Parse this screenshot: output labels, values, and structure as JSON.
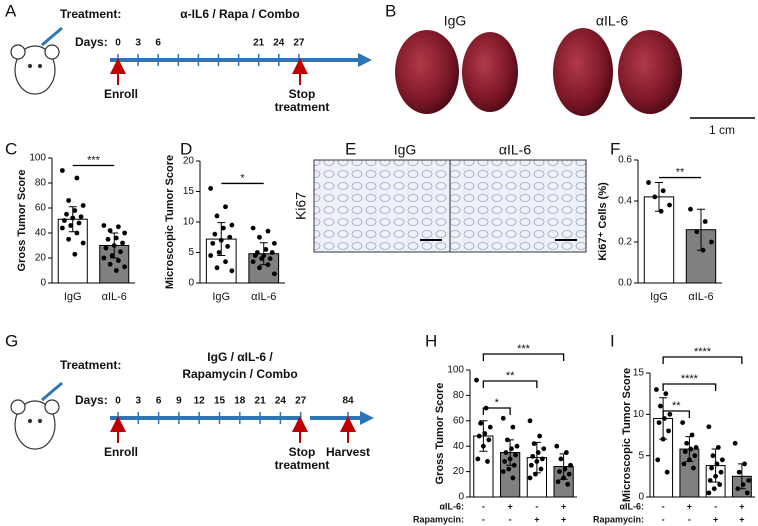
{
  "panels": [
    "A",
    "B",
    "C",
    "D",
    "E",
    "F",
    "G",
    "H",
    "I"
  ],
  "timeline_a": {
    "treatment_label": "Treatment:",
    "treatment": [
      "α-IL6 / Rapa / Combo"
    ],
    "days_label": "Days:",
    "days": [
      0,
      3,
      6,
      21,
      24,
      27
    ],
    "enroll": "Enroll",
    "stop": [
      "Stop",
      "treatment"
    ]
  },
  "timeline_g": {
    "treatment_label": "Treatment:",
    "treatment": [
      "IgG / αIL-6 /",
      "Rapamycin / Combo"
    ],
    "days_label": "Days:",
    "days": [
      0,
      3,
      6,
      9,
      12,
      15,
      18,
      21,
      24,
      27,
      84
    ],
    "enroll": "Enroll",
    "stop": [
      "Stop",
      "treatment"
    ],
    "harvest": "Harvest"
  },
  "kidneys": {
    "groups": [
      "IgG",
      "αIL-6"
    ],
    "scale": "1 cm"
  },
  "ki67": {
    "groups": [
      "IgG",
      "αIL-6"
    ],
    "stain": "Ki67"
  },
  "chart_data": [
    {
      "type": "bar",
      "y_label": "Gross Tumor Score",
      "categories": [
        "IgG",
        "αIL-6"
      ],
      "values": [
        51,
        30
      ],
      "errors": [
        10,
        10
      ],
      "colors": [
        "#ffffff",
        "#808080"
      ],
      "points": [
        [
          90,
          84,
          66,
          62,
          58,
          55,
          53,
          52,
          50,
          48,
          46,
          44,
          40,
          35,
          32,
          23
        ],
        [
          46,
          45,
          42,
          40,
          36,
          35,
          32,
          30,
          28,
          25,
          22,
          20,
          18,
          15,
          13,
          10
        ]
      ],
      "ylim": [
        0,
        100
      ],
      "yticks": [
        0,
        20,
        40,
        60,
        80,
        100
      ],
      "significance": [
        "***"
      ]
    },
    {
      "type": "bar",
      "y_label": "Microscopic Tumor Score",
      "categories": [
        "IgG",
        "αIL-6"
      ],
      "values": [
        7.2,
        4.8
      ],
      "errors": [
        2.7,
        1.8
      ],
      "colors": [
        "#ffffff",
        "#808080"
      ],
      "points": [
        [
          15.5,
          12.5,
          11,
          9.5,
          9,
          8,
          7.5,
          7,
          6.5,
          6,
          5,
          4.5,
          3.5,
          2.5,
          2
        ],
        [
          9,
          8.5,
          7.5,
          6.5,
          5.5,
          5,
          5,
          4.5,
          4.5,
          4,
          4,
          3.5,
          3,
          2.5,
          1.5
        ]
      ],
      "ylim": [
        0,
        20
      ],
      "yticks": [
        0,
        5,
        10,
        15,
        20
      ],
      "significance": [
        "*"
      ]
    },
    {
      "type": "bar",
      "y_label": "Ki67⁺ Cells (%)",
      "categories": [
        "IgG",
        "αIL-6"
      ],
      "values": [
        0.42,
        0.26
      ],
      "errors": [
        0.07,
        0.1
      ],
      "colors": [
        "#ffffff",
        "#808080"
      ],
      "points": [
        [
          0.49,
          0.45,
          0.42,
          0.38,
          0.35
        ],
        [
          0.36,
          0.3,
          0.25,
          0.2,
          0.16
        ]
      ],
      "ylim": [
        0,
        0.6
      ],
      "yticks": [
        {
          "value": 0,
          "label": "0.0"
        },
        0.2,
        0.4,
        0.6
      ],
      "significance": [
        "**"
      ]
    },
    {
      "type": "bar",
      "y_label": "Gross Tumor Score",
      "row_labels": [
        "αIL-6:",
        "Rapamycin:"
      ],
      "conditions": [
        [
          "-",
          "+",
          "-",
          "+"
        ],
        [
          "-",
          "-",
          "+",
          "+"
        ]
      ],
      "values": [
        48,
        35,
        31,
        24
      ],
      "errors": [
        12,
        10,
        12,
        10
      ],
      "colors": [
        "#ffffff",
        "#808080",
        "#ffffff",
        "#808080"
      ],
      "points": [
        [
          92,
          70,
          58,
          55,
          50,
          48,
          45,
          40,
          30,
          28
        ],
        [
          62,
          55,
          45,
          40,
          38,
          35,
          33,
          30,
          28,
          25,
          22,
          20,
          15
        ],
        [
          60,
          48,
          42,
          38,
          35,
          32,
          30,
          28,
          25,
          22,
          18,
          15
        ],
        [
          40,
          35,
          30,
          25,
          22,
          20,
          18,
          15,
          12,
          10
        ]
      ],
      "ylim": [
        0,
        100
      ],
      "yticks": [
        0,
        20,
        40,
        60,
        80,
        100
      ],
      "significance": [
        "*",
        "**",
        "***"
      ]
    },
    {
      "type": "bar",
      "y_label": "Microscopic Tumor Score",
      "row_labels": [
        "αIL-6:",
        "Rapamycin:"
      ],
      "conditions": [
        [
          "-",
          "+",
          "-",
          "+"
        ],
        [
          "-",
          "-",
          "+",
          "+"
        ]
      ],
      "values": [
        9.5,
        5.8,
        3.8,
        2.5
      ],
      "errors": [
        2.5,
        1.5,
        2,
        1.5
      ],
      "colors": [
        "#ffffff",
        "#808080",
        "#ffffff",
        "#808080"
      ],
      "points": [
        [
          13,
          12.5,
          11,
          10,
          9.5,
          9,
          8,
          7,
          4.5,
          3
        ],
        [
          9,
          7.5,
          6.5,
          6,
          5.8,
          5.5,
          5,
          4.5,
          4,
          3.5
        ],
        [
          8.5,
          6,
          5,
          4.5,
          4,
          3.5,
          3,
          2.5,
          2,
          1.5,
          1,
          0.5
        ],
        [
          6.5,
          4,
          3,
          2,
          1.5,
          1,
          0.5
        ]
      ],
      "ylim": [
        0,
        15
      ],
      "yticks": [
        0,
        5,
        10,
        15
      ],
      "significance": [
        "**",
        "****",
        "****"
      ]
    }
  ]
}
